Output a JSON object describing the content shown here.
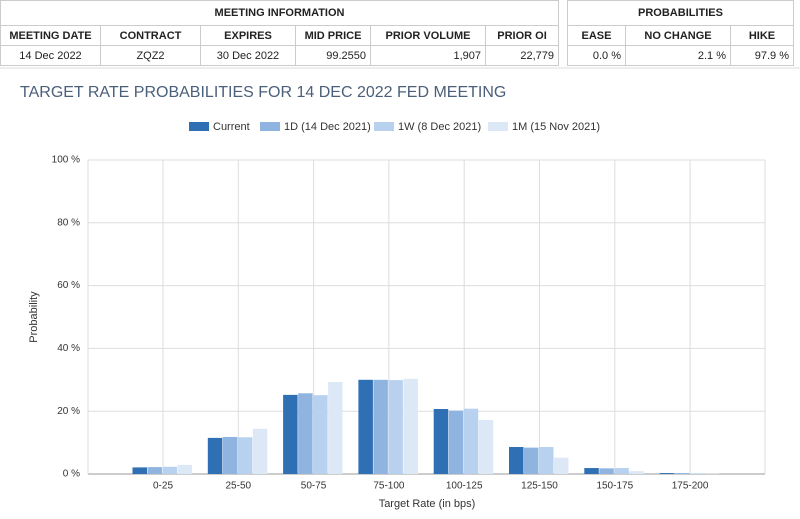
{
  "meeting_info": {
    "title": "MEETING INFORMATION",
    "headers": [
      "MEETING DATE",
      "CONTRACT",
      "EXPIRES",
      "MID PRICE",
      "PRIOR VOLUME",
      "PRIOR OI"
    ],
    "values": [
      "14 Dec 2022",
      "ZQZ2",
      "30 Dec 2022",
      "99.2550",
      "1,907",
      "22,779"
    ]
  },
  "probabilities": {
    "title": "PROBABILITIES",
    "headers": [
      "EASE",
      "NO CHANGE",
      "HIKE"
    ],
    "values": [
      "0.0 %",
      "2.1 %",
      "97.9 %"
    ]
  },
  "chart_data": {
    "type": "bar",
    "title": "TARGET RATE PROBABILITIES FOR 14 DEC 2022 FED MEETING",
    "x_label": "Target Rate (in bps)",
    "y_label": "Probability",
    "categories": [
      "0-25",
      "25-50",
      "50-75",
      "75-100",
      "100-125",
      "125-150",
      "150-175",
      "175-200"
    ],
    "series": [
      {
        "name": "Current",
        "color": "#2f6fb3",
        "values": [
          2.1,
          11.5,
          25.2,
          30.0,
          20.7,
          8.6,
          1.9,
          0.3
        ]
      },
      {
        "name": "1D (14 Dec 2021)",
        "color": "#8fb4e0",
        "values": [
          2.2,
          11.8,
          25.7,
          30.0,
          20.2,
          8.4,
          1.8,
          0.3
        ]
      },
      {
        "name": "1W (8 Dec 2021)",
        "color": "#b7d1ef",
        "values": [
          2.3,
          11.7,
          25.1,
          29.9,
          20.8,
          8.6,
          1.9,
          0.2
        ]
      },
      {
        "name": "1M (15 Nov 2021)",
        "color": "#dce8f6",
        "values": [
          2.9,
          14.4,
          29.3,
          30.3,
          17.2,
          5.2,
          0.9,
          0.1
        ]
      }
    ],
    "ylim": [
      0,
      100
    ],
    "yticks": [
      {
        "value": 0,
        "label": "0 %"
      },
      {
        "value": 20,
        "label": "20 %"
      },
      {
        "value": 40,
        "label": "40 %"
      },
      {
        "value": 60,
        "label": "60 %"
      },
      {
        "value": 80,
        "label": "80 %"
      },
      {
        "value": 100,
        "label": "100 %"
      }
    ],
    "grid": true
  }
}
